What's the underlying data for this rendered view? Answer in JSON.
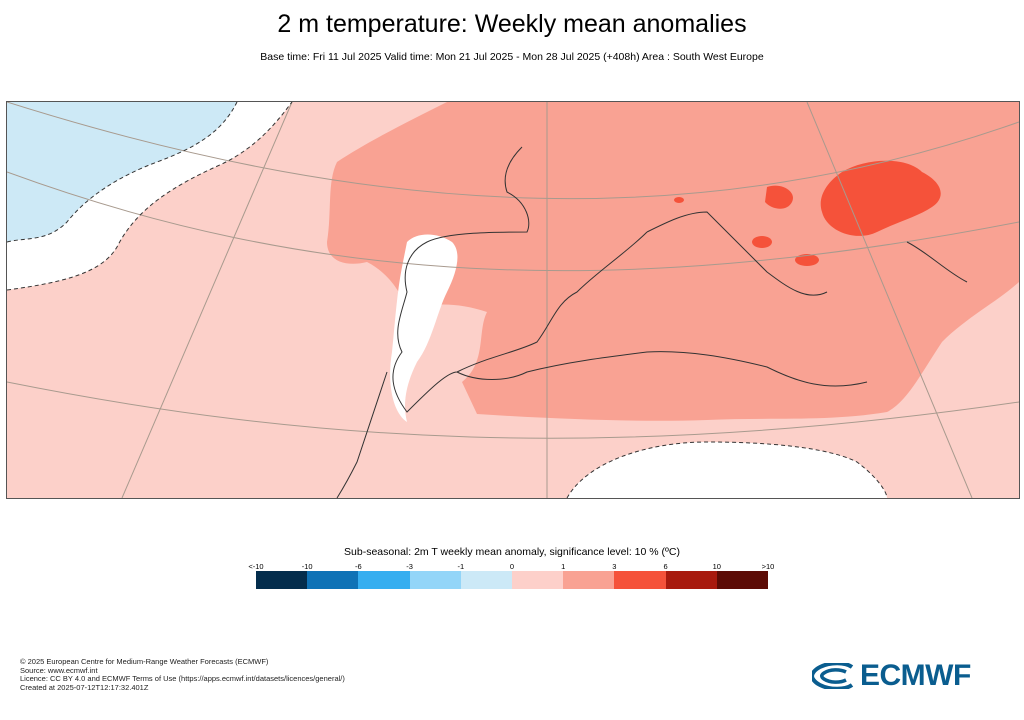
{
  "header": {
    "title": "2 m temperature: Weekly mean anomalies",
    "subtitle": "Base time: Fri 11 Jul 2025 Valid time: Mon 21 Jul 2025 - Mon 28 Jul 2025 (+408h) Area : South West Europe"
  },
  "map": {
    "region": "South West Europe",
    "colors": {
      "ocean_neutral": "#fcd0c9",
      "cool_anomaly": "#cde9f6",
      "warm_anomaly": "#f9a293",
      "strong_warm_anomaly": "#f5523a",
      "not_significant": "#ffffff",
      "coastline": "#333333",
      "grid": "#a89a8e"
    }
  },
  "legend": {
    "title": "Sub-seasonal: 2m T weekly mean anomaly, significance level: 10 % (ºC)",
    "ticks": [
      "<-10",
      "-10",
      "-6",
      "-3",
      "-1",
      "0",
      "1",
      "3",
      "6",
      "10",
      ">10"
    ],
    "colors": [
      "#042d4d",
      "#0f72b6",
      "#35aef0",
      "#93d5f8",
      "#cce9f7",
      "#fdd0ca",
      "#f9a293",
      "#f5523a",
      "#a81a0e",
      "#5c0b05"
    ]
  },
  "footer": {
    "credits": [
      "© 2025 European Centre for Medium-Range Weather Forecasts (ECMWF)",
      "Source: www.ecmwf.int",
      "Licence: CC BY 4.0 and ECMWF Terms of Use (https://apps.ecmwf.int/datasets/licences/general/)",
      "Created at 2025-07-12T12:17:32.401Z"
    ],
    "logo_text": "ECMWF"
  }
}
